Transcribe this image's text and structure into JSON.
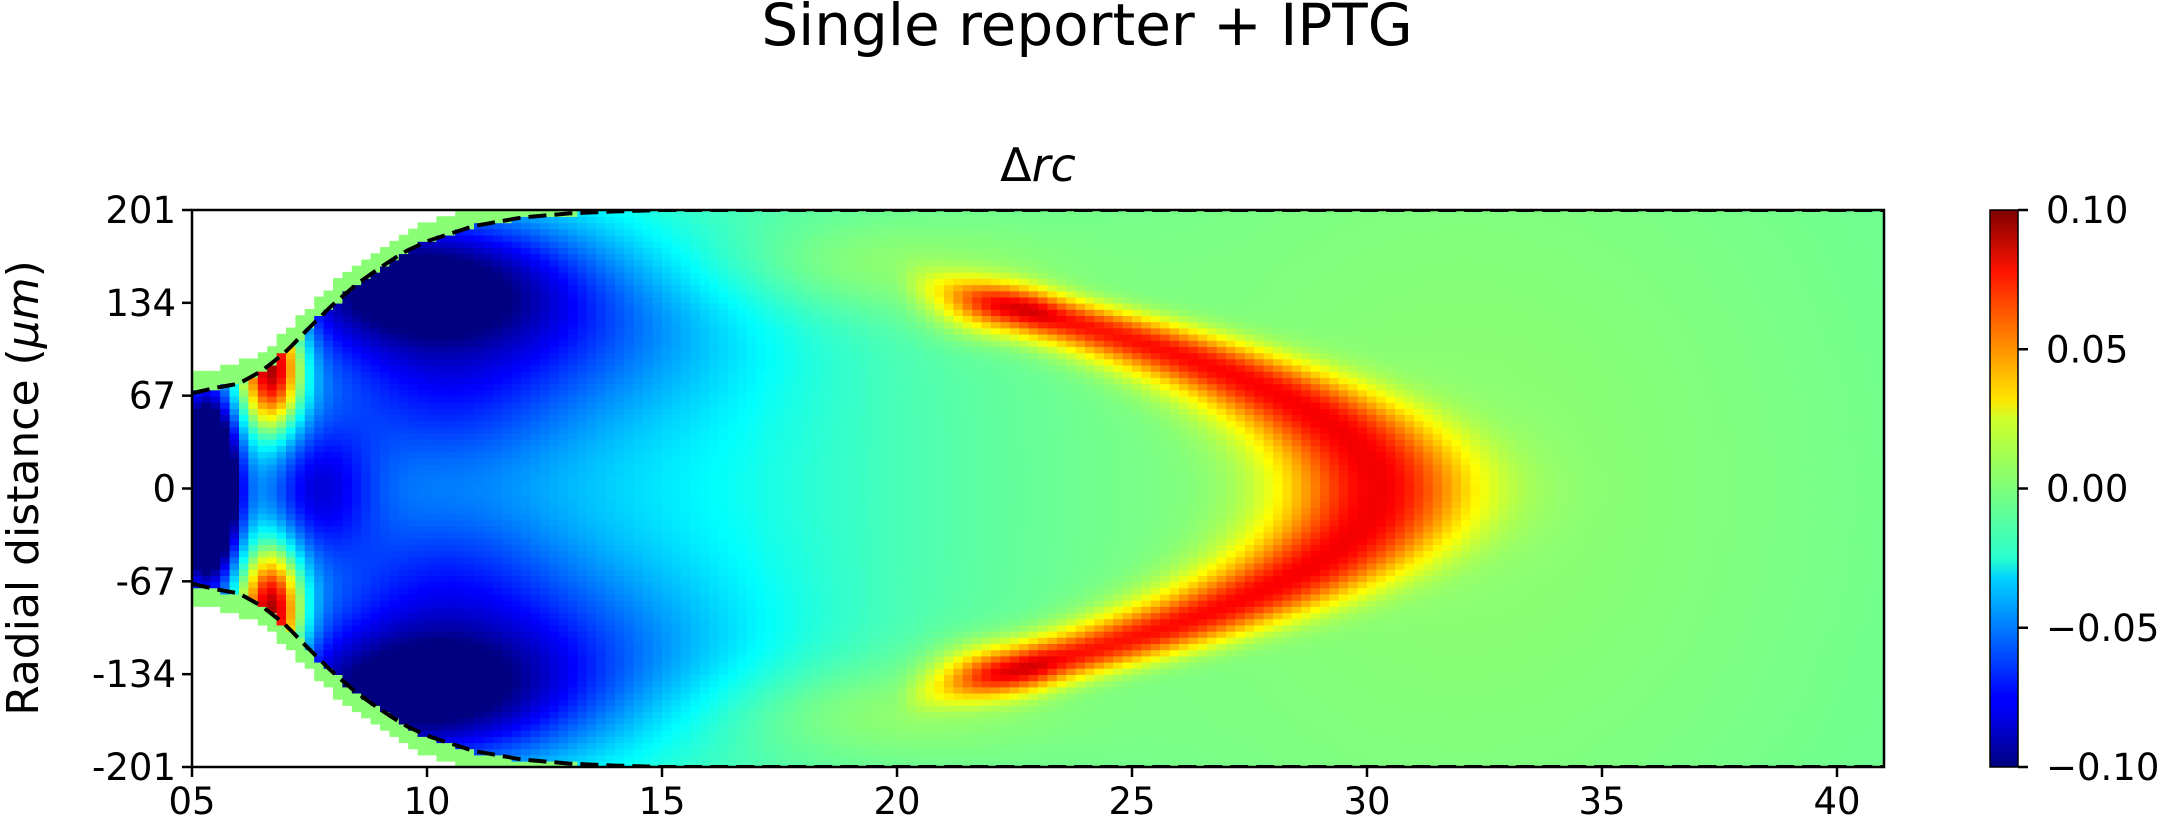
{
  "chart_data": {
    "type": "heatmap",
    "title": "Single reporter + IPTG",
    "subtitle_prefix": "Δ",
    "subtitle_italic": "rc",
    "ylabel_prefix": "Radial distance (",
    "ylabel_unit": "μm",
    "ylabel_suffix": ")",
    "xlim": [
      5,
      41
    ],
    "ylim": [
      -201,
      201
    ],
    "x_ticks": [
      {
        "value": 5,
        "label": "05"
      },
      {
        "value": 10,
        "label": "10"
      },
      {
        "value": 15,
        "label": "15"
      },
      {
        "value": 20,
        "label": "20"
      },
      {
        "value": 25,
        "label": "25"
      },
      {
        "value": 30,
        "label": "30"
      },
      {
        "value": 35,
        "label": "35"
      },
      {
        "value": 40,
        "label": "40"
      }
    ],
    "y_ticks": [
      {
        "value": 201,
        "label": "201"
      },
      {
        "value": 134,
        "label": "134"
      },
      {
        "value": 67,
        "label": "67"
      },
      {
        "value": 0,
        "label": "0"
      },
      {
        "value": -67,
        "label": "-67"
      },
      {
        "value": -134,
        "label": "-134"
      },
      {
        "value": -201,
        "label": "-201"
      }
    ],
    "colorbar": {
      "colormap": "jet",
      "range": [
        -0.1,
        0.1
      ],
      "ticks": [
        {
          "value": 0.1,
          "label": "0.10"
        },
        {
          "value": 0.05,
          "label": "0.05"
        },
        {
          "value": 0.0,
          "label": "0.00"
        },
        {
          "value": -0.05,
          "label": "−0.05"
        },
        {
          "value": -0.1,
          "label": "−0.10"
        }
      ]
    },
    "boundary": {
      "style": "dashed",
      "color": "#000000",
      "x": [
        5.0,
        5.5,
        6.0,
        6.5,
        7.0,
        7.5,
        8.0,
        8.5,
        9.0,
        9.5,
        10.0,
        11.0,
        12.0,
        13.0,
        14.0,
        15.0,
        17.0,
        20.0,
        25.0,
        30.0,
        35.0,
        41.0
      ],
      "r": [
        137,
        145,
        151,
        170,
        197,
        232,
        265,
        294,
        318,
        340,
        356,
        378,
        390,
        396,
        399,
        401,
        401,
        401,
        401,
        401,
        401,
        401
      ],
      "radius_scale_max": 401
    },
    "field": {
      "background": -0.005,
      "blobs": [
        {
          "x": 5.3,
          "y": 0,
          "sx": 0.45,
          "sy": 45,
          "v": -0.2
        },
        {
          "x": 6.7,
          "y": 90,
          "sx": 0.45,
          "sy": 32,
          "v": 0.13
        },
        {
          "x": 6.7,
          "y": -90,
          "sx": 0.45,
          "sy": 32,
          "v": 0.13
        },
        {
          "x": 7.6,
          "y": 0,
          "sx": 0.9,
          "sy": 35,
          "v": -0.05
        },
        {
          "x": 9.5,
          "y": 150,
          "sx": 2.5,
          "sy": 38,
          "v": -0.085
        },
        {
          "x": 9.5,
          "y": -150,
          "sx": 2.5,
          "sy": 38,
          "v": -0.085
        },
        {
          "x": 13,
          "y": 120,
          "sx": 3.0,
          "sy": 50,
          "v": -0.03
        },
        {
          "x": 13,
          "y": -120,
          "sx": 3.0,
          "sy": 50,
          "v": -0.03
        },
        {
          "x": 10,
          "y": 60,
          "sx": 2.0,
          "sy": 40,
          "v": -0.03
        },
        {
          "x": 10,
          "y": -60,
          "sx": 2.0,
          "sy": 40,
          "v": -0.03
        },
        {
          "x": 12,
          "y": 0,
          "sx": 5.0,
          "sy": 120,
          "v": -0.025
        },
        {
          "x": 22,
          "y": 130,
          "sx": 0.8,
          "sy": 14,
          "v": 0.028
        },
        {
          "x": 22,
          "y": -130,
          "sx": 0.8,
          "sy": 14,
          "v": 0.028
        },
        {
          "x": 32,
          "y": 0,
          "sx": 6.0,
          "sy": 220,
          "v": 0.008
        },
        {
          "x": 19,
          "y": 160,
          "sx": 3.0,
          "sy": 25,
          "v": 0.012
        },
        {
          "x": 19,
          "y": -160,
          "sx": 3.0,
          "sy": 25,
          "v": 0.012
        }
      ],
      "ridge": {
        "x0": 30.2,
        "x_tip_width": 1.0,
        "y_tip": 135,
        "sigma": 1.4,
        "v": 0.075,
        "fade_x": 22
      }
    }
  }
}
